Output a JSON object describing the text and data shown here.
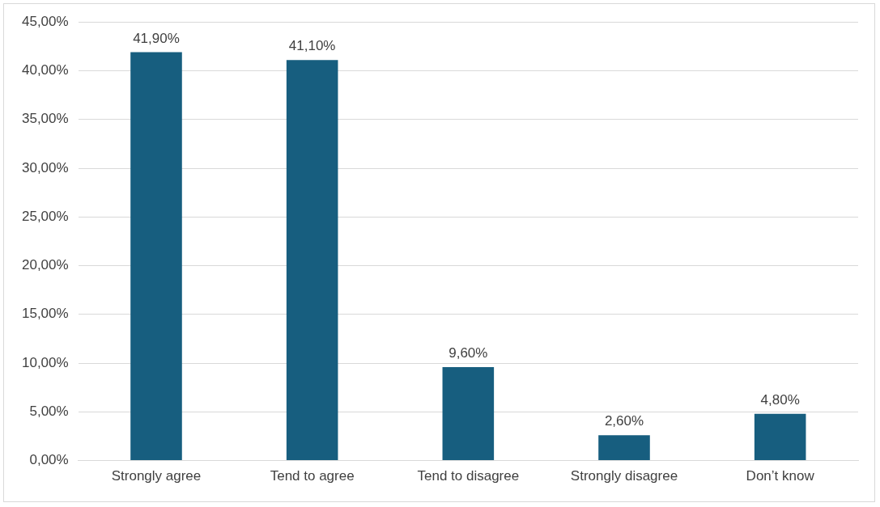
{
  "chart_data": {
    "type": "bar",
    "categories": [
      "Strongly agree",
      "Tend to agree",
      "Tend to disagree",
      "Strongly disagree",
      "Don’t know"
    ],
    "values": [
      41.9,
      41.1,
      9.6,
      2.6,
      4.8
    ],
    "value_labels": [
      "41,90%",
      "41,10%",
      "9,60%",
      "2,60%",
      "4,80%"
    ],
    "color": "#175e7f",
    "ylim": [
      0,
      45
    ],
    "yticks": [
      {
        "value": 0,
        "label": "0,00%"
      },
      {
        "value": 5,
        "label": "5,00%"
      },
      {
        "value": 10,
        "label": "10,00%"
      },
      {
        "value": 15,
        "label": "15,00%"
      },
      {
        "value": 20,
        "label": "20,00%"
      },
      {
        "value": 25,
        "label": "25,00%"
      },
      {
        "value": 30,
        "label": "30,00%"
      },
      {
        "value": 35,
        "label": "35,00%"
      },
      {
        "value": 40,
        "label": "40,00%"
      },
      {
        "value": 45,
        "label": "45,00%"
      }
    ],
    "grid": "y",
    "legend": false
  }
}
